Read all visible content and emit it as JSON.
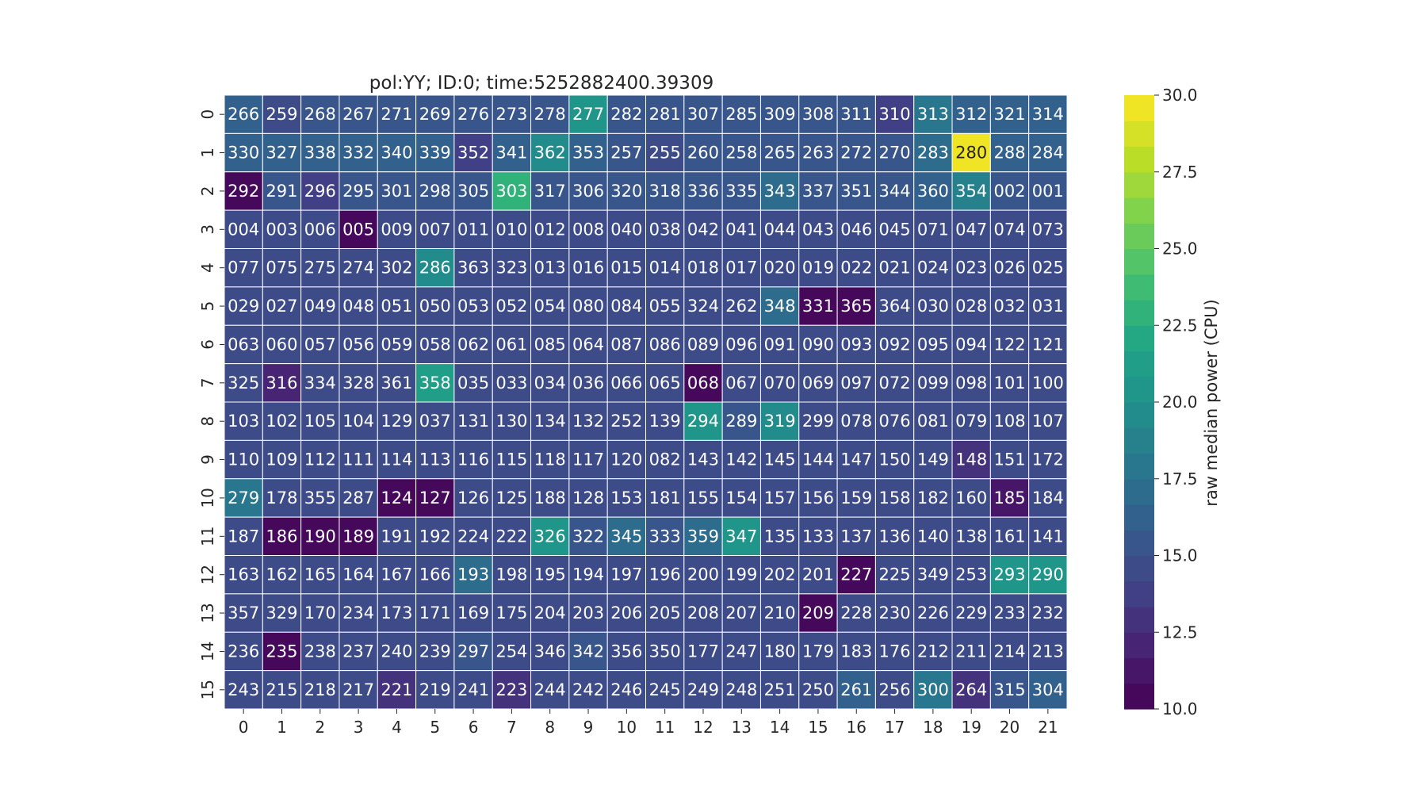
{
  "chart_data": {
    "type": "heatmap",
    "title": "pol:YY; ID:0; time:5252882400.39309",
    "x_categories": [
      "0",
      "1",
      "2",
      "3",
      "4",
      "5",
      "6",
      "7",
      "8",
      "9",
      "10",
      "11",
      "12",
      "13",
      "14",
      "15",
      "16",
      "17",
      "18",
      "19",
      "20",
      "21"
    ],
    "y_categories": [
      "0",
      "1",
      "2",
      "3",
      "4",
      "5",
      "6",
      "7",
      "8",
      "9",
      "10",
      "11",
      "12",
      "13",
      "14",
      "15"
    ],
    "cell_labels": [
      [
        "266",
        "259",
        "268",
        "267",
        "271",
        "269",
        "276",
        "273",
        "278",
        "277",
        "282",
        "281",
        "307",
        "285",
        "309",
        "308",
        "311",
        "310",
        "313",
        "312",
        "321",
        "314"
      ],
      [
        "330",
        "327",
        "338",
        "332",
        "340",
        "339",
        "352",
        "341",
        "362",
        "353",
        "257",
        "255",
        "260",
        "258",
        "265",
        "263",
        "272",
        "270",
        "283",
        "280",
        "288",
        "284"
      ],
      [
        "292",
        "291",
        "296",
        "295",
        "301",
        "298",
        "305",
        "303",
        "317",
        "306",
        "320",
        "318",
        "336",
        "335",
        "343",
        "337",
        "351",
        "344",
        "360",
        "354",
        "002",
        "001"
      ],
      [
        "004",
        "003",
        "006",
        "005",
        "009",
        "007",
        "011",
        "010",
        "012",
        "008",
        "040",
        "038",
        "042",
        "041",
        "044",
        "043",
        "046",
        "045",
        "071",
        "047",
        "074",
        "073"
      ],
      [
        "077",
        "075",
        "275",
        "274",
        "302",
        "286",
        "363",
        "323",
        "013",
        "016",
        "015",
        "014",
        "018",
        "017",
        "020",
        "019",
        "022",
        "021",
        "024",
        "023",
        "026",
        "025"
      ],
      [
        "029",
        "027",
        "049",
        "048",
        "051",
        "050",
        "053",
        "052",
        "054",
        "080",
        "084",
        "055",
        "324",
        "262",
        "348",
        "331",
        "365",
        "364",
        "030",
        "028",
        "032",
        "031"
      ],
      [
        "063",
        "060",
        "057",
        "056",
        "059",
        "058",
        "062",
        "061",
        "085",
        "064",
        "087",
        "086",
        "089",
        "096",
        "091",
        "090",
        "093",
        "092",
        "095",
        "094",
        "122",
        "121"
      ],
      [
        "325",
        "316",
        "334",
        "328",
        "361",
        "358",
        "035",
        "033",
        "034",
        "036",
        "066",
        "065",
        "068",
        "067",
        "070",
        "069",
        "097",
        "072",
        "099",
        "098",
        "101",
        "100"
      ],
      [
        "103",
        "102",
        "105",
        "104",
        "129",
        "037",
        "131",
        "130",
        "134",
        "132",
        "252",
        "139",
        "294",
        "289",
        "319",
        "299",
        "078",
        "076",
        "081",
        "079",
        "108",
        "107"
      ],
      [
        "110",
        "109",
        "112",
        "111",
        "114",
        "113",
        "116",
        "115",
        "118",
        "117",
        "120",
        "082",
        "143",
        "142",
        "145",
        "144",
        "147",
        "150",
        "149",
        "148",
        "151",
        "172"
      ],
      [
        "279",
        "178",
        "355",
        "287",
        "124",
        "127",
        "126",
        "125",
        "188",
        "128",
        "153",
        "181",
        "155",
        "154",
        "157",
        "156",
        "159",
        "158",
        "182",
        "160",
        "185",
        "184"
      ],
      [
        "187",
        "186",
        "190",
        "189",
        "191",
        "192",
        "224",
        "222",
        "326",
        "322",
        "345",
        "333",
        "359",
        "347",
        "135",
        "133",
        "137",
        "136",
        "140",
        "138",
        "161",
        "141"
      ],
      [
        "163",
        "162",
        "165",
        "164",
        "167",
        "166",
        "193",
        "198",
        "195",
        "194",
        "197",
        "196",
        "200",
        "199",
        "202",
        "201",
        "227",
        "225",
        "349",
        "253",
        "293",
        "290"
      ],
      [
        "357",
        "329",
        "170",
        "234",
        "173",
        "171",
        "169",
        "175",
        "204",
        "203",
        "206",
        "205",
        "208",
        "207",
        "210",
        "209",
        "228",
        "230",
        "226",
        "229",
        "233",
        "232"
      ],
      [
        "236",
        "235",
        "238",
        "237",
        "240",
        "239",
        "297",
        "254",
        "346",
        "342",
        "356",
        "350",
        "177",
        "247",
        "180",
        "179",
        "183",
        "176",
        "212",
        "211",
        "214",
        "213"
      ],
      [
        "243",
        "215",
        "218",
        "217",
        "221",
        "219",
        "241",
        "223",
        "244",
        "242",
        "246",
        "245",
        "249",
        "248",
        "251",
        "250",
        "261",
        "256",
        "300",
        "264",
        "315",
        "304"
      ]
    ],
    "values": [
      [
        16.5,
        14.5,
        15.0,
        15.5,
        15.0,
        15.0,
        15.0,
        15.0,
        15.0,
        20.5,
        15.5,
        15.0,
        15.5,
        15.0,
        15.5,
        15.5,
        15.5,
        14.0,
        17.5,
        16.0,
        16.0,
        16.5
      ],
      [
        16.0,
        16.0,
        16.0,
        16.0,
        16.0,
        16.0,
        13.5,
        16.0,
        19.5,
        16.0,
        15.0,
        14.5,
        15.0,
        15.0,
        15.0,
        15.0,
        15.0,
        15.0,
        17.0,
        30.0,
        16.0,
        16.5
      ],
      [
        10.0,
        15.5,
        14.0,
        15.5,
        15.5,
        15.5,
        15.5,
        22.5,
        15.5,
        15.5,
        15.5,
        15.5,
        15.5,
        15.5,
        17.0,
        15.5,
        15.5,
        15.5,
        16.5,
        19.0,
        15.5,
        15.5
      ],
      [
        14.5,
        14.5,
        14.5,
        10.0,
        14.5,
        14.5,
        14.5,
        14.5,
        14.5,
        14.5,
        14.5,
        14.5,
        14.5,
        14.5,
        14.5,
        14.5,
        14.5,
        14.5,
        14.5,
        14.5,
        14.5,
        14.5
      ],
      [
        14.5,
        14.5,
        14.5,
        14.5,
        14.5,
        19.5,
        14.5,
        14.5,
        14.5,
        14.5,
        14.5,
        14.5,
        14.5,
        14.5,
        14.5,
        14.5,
        14.5,
        14.5,
        14.5,
        14.5,
        14.5,
        14.5
      ],
      [
        14.5,
        14.5,
        14.5,
        14.5,
        14.5,
        14.5,
        14.5,
        14.5,
        14.5,
        14.5,
        14.5,
        14.5,
        14.5,
        14.5,
        17.0,
        10.0,
        10.5,
        14.5,
        14.5,
        14.5,
        14.5,
        14.5
      ],
      [
        14.5,
        14.5,
        14.5,
        14.5,
        14.5,
        14.5,
        14.5,
        14.5,
        14.5,
        14.5,
        14.5,
        14.5,
        14.5,
        14.5,
        14.5,
        14.5,
        14.5,
        14.5,
        14.5,
        14.5,
        14.5,
        14.5
      ],
      [
        14.5,
        12.0,
        14.5,
        14.5,
        14.5,
        21.0,
        14.5,
        14.5,
        14.5,
        14.5,
        14.5,
        14.5,
        10.0,
        14.5,
        14.5,
        14.5,
        14.5,
        14.5,
        14.5,
        14.5,
        14.5,
        14.5
      ],
      [
        14.5,
        14.5,
        14.5,
        14.5,
        14.5,
        14.5,
        14.5,
        14.5,
        14.5,
        14.5,
        14.5,
        14.5,
        20.5,
        15.0,
        19.5,
        14.5,
        14.5,
        14.5,
        14.5,
        14.5,
        14.5,
        14.5
      ],
      [
        14.5,
        14.5,
        14.5,
        14.5,
        14.5,
        14.5,
        14.5,
        14.5,
        14.5,
        14.5,
        14.5,
        14.5,
        14.5,
        14.5,
        14.5,
        14.5,
        14.5,
        14.5,
        14.5,
        13.0,
        14.5,
        14.5
      ],
      [
        17.5,
        14.5,
        14.5,
        14.5,
        10.0,
        10.5,
        14.5,
        14.5,
        14.5,
        14.5,
        14.5,
        14.5,
        14.5,
        14.5,
        14.5,
        14.5,
        14.5,
        14.5,
        14.5,
        14.5,
        11.5,
        14.5
      ],
      [
        14.5,
        10.0,
        10.5,
        10.5,
        14.5,
        14.5,
        14.5,
        14.5,
        20.0,
        15.5,
        17.0,
        15.5,
        17.0,
        20.5,
        14.5,
        14.5,
        14.5,
        14.5,
        14.5,
        14.5,
        14.5,
        14.5
      ],
      [
        14.5,
        14.5,
        14.5,
        14.5,
        14.5,
        14.5,
        17.0,
        14.5,
        14.5,
        14.5,
        14.5,
        14.5,
        14.5,
        14.5,
        14.5,
        14.5,
        10.0,
        14.5,
        14.5,
        14.5,
        20.5,
        20.5
      ],
      [
        14.5,
        14.5,
        14.5,
        14.5,
        14.5,
        14.5,
        14.5,
        14.5,
        14.5,
        14.5,
        14.5,
        14.5,
        14.5,
        14.5,
        14.5,
        10.0,
        14.5,
        14.5,
        14.5,
        14.5,
        14.5,
        14.5
      ],
      [
        14.5,
        10.0,
        14.5,
        14.5,
        14.5,
        14.5,
        15.0,
        14.5,
        14.5,
        15.5,
        14.5,
        14.5,
        14.5,
        14.5,
        14.5,
        14.5,
        14.5,
        14.5,
        14.5,
        14.5,
        14.5,
        14.5
      ],
      [
        14.5,
        14.5,
        14.5,
        14.5,
        13.0,
        14.5,
        14.5,
        13.0,
        14.5,
        14.5,
        14.5,
        14.5,
        14.5,
        14.5,
        14.5,
        14.5,
        16.5,
        14.5,
        17.5,
        13.0,
        15.5,
        16.5
      ]
    ],
    "colorbar": {
      "label": "raw median power (CPU)",
      "range": [
        10.0,
        30.0
      ],
      "ticks": [
        "10.0",
        "12.5",
        "15.0",
        "17.5",
        "20.0",
        "22.5",
        "25.0",
        "27.5",
        "30.0"
      ],
      "tick_values": [
        10.0,
        12.5,
        15.0,
        17.5,
        20.0,
        22.5,
        25.0,
        27.5,
        30.0
      ],
      "colormap": "viridis",
      "levels": 24
    },
    "grid": false,
    "cell_border_color": "#ffffff"
  }
}
